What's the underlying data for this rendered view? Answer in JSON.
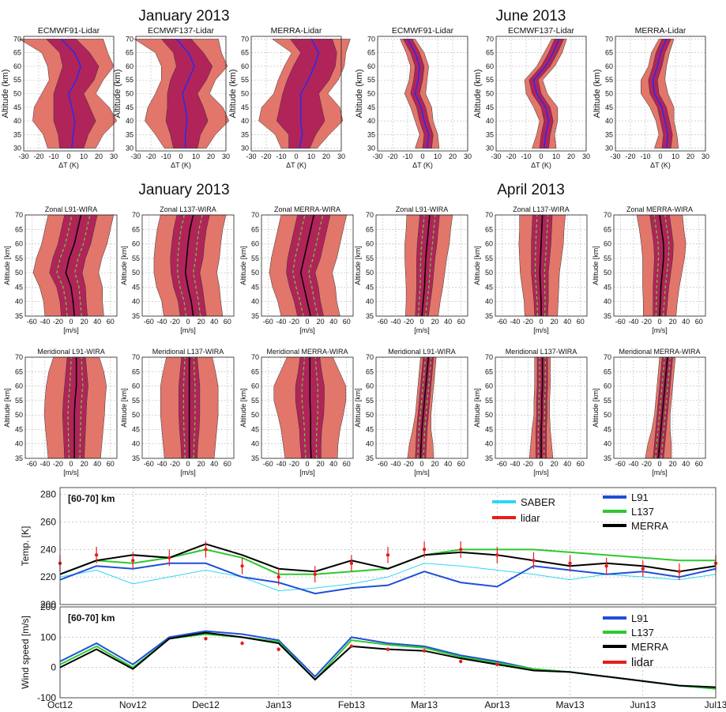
{
  "headings": {
    "jan_top": "January 2013",
    "jun": "June 2013",
    "jan_mid": "January 2013",
    "apr": "April 2013"
  },
  "colors": {
    "outer_band": "#e2766a",
    "inner_band": "#b0245a",
    "mean_line_temp": "#2a2af0",
    "mean_line_wind": "#000000",
    "sd_line_wind": "#66cc33",
    "saber": "#2fd6f0",
    "lidar": "#e81c1c",
    "l91": "#1f4fd8",
    "l137": "#2ec82e",
    "merra": "#000000"
  },
  "chart_data": [
    {
      "id": "temp_profiles",
      "type": "area",
      "ylabel": "Altitude (km)",
      "xlabel": "ΔT (K)",
      "xticks": [
        "-30",
        "-20",
        "-10",
        "0",
        "10",
        "20",
        "30"
      ],
      "yticks": [
        "30",
        "35",
        "40",
        "45",
        "50",
        "55",
        "60",
        "65",
        "70"
      ],
      "xlim": [
        -30,
        30
      ],
      "ylim": [
        29,
        71
      ],
      "altitudes": [
        30,
        35,
        40,
        45,
        50,
        55,
        60,
        65,
        70
      ],
      "panels": [
        {
          "title": "ECMWF91-Lidar",
          "mean": [
            2,
            3,
            4,
            2,
            0,
            5,
            8,
            4,
            -5
          ],
          "inner": [
            8,
            10,
            14,
            12,
            10,
            12,
            12,
            10,
            10
          ],
          "outer": [
            16,
            20,
            28,
            25,
            18,
            18,
            22,
            22,
            28
          ]
        },
        {
          "title": "ECMWF137-Lidar",
          "mean": [
            3,
            3,
            4,
            3,
            1,
            5,
            9,
            5,
            -3
          ],
          "inner": [
            8,
            10,
            14,
            12,
            10,
            12,
            12,
            10,
            10
          ],
          "outer": [
            14,
            20,
            28,
            25,
            18,
            18,
            22,
            22,
            28
          ]
        },
        {
          "title": "MERRA-Lidar",
          "mean": [
            2,
            4,
            3,
            3,
            3,
            8,
            12,
            15,
            10
          ],
          "inner": [
            7,
            9,
            16,
            14,
            12,
            14,
            14,
            12,
            14
          ],
          "outer": [
            12,
            18,
            28,
            26,
            18,
            20,
            20,
            18,
            26
          ]
        },
        {
          "title": "ECMWF91-Lidar",
          "mean": [
            3,
            4,
            1,
            -1,
            -5,
            -3,
            -2,
            -5,
            -10
          ],
          "inner": [
            3,
            3,
            3,
            3,
            3,
            3,
            3,
            3,
            3
          ],
          "outer": [
            8,
            6,
            6,
            7,
            7,
            6,
            6,
            6,
            5
          ]
        },
        {
          "title": "ECMWF137-Lidar",
          "mean": [
            2,
            3,
            5,
            3,
            -3,
            -5,
            3,
            8,
            12
          ],
          "inner": [
            3,
            3,
            3,
            3,
            3,
            3,
            3,
            3,
            3
          ],
          "outer": [
            8,
            6,
            6,
            8,
            7,
            6,
            6,
            6,
            5
          ]
        },
        {
          "title": "MERRA-Lidar",
          "mean": [
            4,
            5,
            3,
            1,
            -4,
            -5,
            -2,
            0,
            4
          ],
          "inner": [
            3,
            3,
            3,
            3,
            3,
            3,
            3,
            3,
            3
          ],
          "outer": [
            8,
            6,
            6,
            8,
            9,
            8,
            6,
            6,
            5
          ]
        }
      ]
    },
    {
      "id": "wind_profiles",
      "type": "area",
      "ylabel": "Altitude [km]",
      "xlabel": "[m/s]",
      "xticks": [
        "-60",
        "-40",
        "-20",
        "0",
        "20",
        "40",
        "60"
      ],
      "yticks": [
        "35",
        "40",
        "45",
        "50",
        "55",
        "60",
        "65",
        "70"
      ],
      "xlim": [
        -70,
        70
      ],
      "ylim": [
        35,
        70
      ],
      "altitudes": [
        35,
        40,
        45,
        50,
        55,
        60,
        65,
        70
      ],
      "panels": [
        {
          "title": "Zonal L91-WIRA",
          "mean": [
            5,
            3,
            0,
            -8,
            -3,
            5,
            10,
            15
          ],
          "inner": [
            20,
            20,
            22,
            25,
            25,
            25,
            25,
            25
          ],
          "outer": [
            45,
            45,
            48,
            50,
            50,
            50,
            50,
            50
          ]
        },
        {
          "title": "Zonal L137-WIRA",
          "mean": [
            8,
            5,
            0,
            -4,
            -2,
            0,
            3,
            8
          ],
          "inner": [
            20,
            20,
            22,
            22,
            25,
            25,
            25,
            25
          ],
          "outer": [
            45,
            45,
            48,
            48,
            50,
            50,
            50,
            50
          ]
        },
        {
          "title": "Zonal MERRA-WIRA",
          "mean": [
            5,
            0,
            -5,
            -10,
            -5,
            0,
            5,
            10
          ],
          "inner": [
            20,
            20,
            22,
            22,
            25,
            25,
            25,
            25
          ],
          "outer": [
            45,
            45,
            48,
            48,
            50,
            50,
            50,
            50
          ]
        },
        {
          "title": "Zonal L91-WIRA",
          "mean": [
            0,
            2,
            4,
            5,
            6,
            8,
            10,
            12
          ],
          "inner": [
            10,
            11,
            12,
            13,
            14,
            15,
            15,
            15
          ],
          "outer": [
            25,
            26,
            28,
            30,
            32,
            34,
            34,
            35
          ]
        },
        {
          "title": "Zonal L137-WIRA",
          "mean": [
            0,
            0,
            -1,
            -2,
            -1,
            0,
            1,
            2
          ],
          "inner": [
            10,
            11,
            12,
            13,
            14,
            15,
            15,
            15
          ],
          "outer": [
            25,
            26,
            28,
            30,
            32,
            34,
            34,
            35
          ]
        },
        {
          "title": "Zonal MERRA-WIRA",
          "mean": [
            0,
            1,
            2,
            4,
            6,
            6,
            3,
            0
          ],
          "inner": [
            10,
            11,
            12,
            13,
            14,
            15,
            15,
            15
          ],
          "outer": [
            25,
            26,
            28,
            30,
            32,
            34,
            34,
            35
          ]
        },
        {
          "title": "Meridional L91-WIRA",
          "mean": [
            5,
            5,
            5,
            5,
            6,
            8,
            8,
            8
          ],
          "inner": [
            15,
            16,
            17,
            18,
            18,
            18,
            16,
            14
          ],
          "outer": [
            40,
            42,
            44,
            46,
            46,
            46,
            42,
            35
          ]
        },
        {
          "title": "Meridional L137-WIRA",
          "mean": [
            2,
            2,
            2,
            2,
            2,
            2,
            2,
            2
          ],
          "inner": [
            12,
            13,
            15,
            16,
            16,
            16,
            14,
            12
          ],
          "outer": [
            38,
            40,
            42,
            44,
            44,
            44,
            40,
            35
          ]
        },
        {
          "title": "Meridional MERRA-WIRA",
          "mean": [
            6,
            5,
            5,
            5,
            4,
            4,
            4,
            4
          ],
          "inner": [
            15,
            16,
            17,
            20,
            22,
            22,
            18,
            15
          ],
          "outer": [
            40,
            42,
            45,
            50,
            55,
            55,
            45,
            35
          ]
        },
        {
          "title": "Meridional L91-WIRA",
          "mean": [
            -2,
            -1,
            0,
            2,
            4,
            6,
            8,
            10
          ],
          "inner": [
            8,
            8,
            8,
            8,
            8,
            8,
            8,
            8
          ],
          "outer": [
            20,
            18,
            14,
            12,
            12,
            12,
            12,
            12
          ]
        },
        {
          "title": "Meridional L137-WIRA",
          "mean": [
            0,
            0,
            0,
            1,
            1,
            2,
            2,
            2
          ],
          "inner": [
            8,
            8,
            8,
            8,
            8,
            8,
            8,
            8
          ],
          "outer": [
            18,
            16,
            14,
            12,
            12,
            12,
            12,
            12
          ]
        },
        {
          "title": "Meridional MERRA-WIRA",
          "mean": [
            -2,
            0,
            2,
            4,
            6,
            8,
            10,
            12
          ],
          "inner": [
            8,
            8,
            8,
            8,
            8,
            8,
            8,
            8
          ],
          "outer": [
            20,
            18,
            14,
            12,
            12,
            12,
            12,
            12
          ]
        }
      ]
    },
    {
      "id": "temp_timeseries",
      "type": "line",
      "label": "[60-70] km",
      "ylabel": "Temp. [K]",
      "ylim": [
        200,
        285
      ],
      "yticks": [
        200,
        220,
        240,
        260,
        280
      ],
      "ytick_labels": [
        "200",
        "220",
        "240",
        "260",
        "280"
      ],
      "xlim": [
        0,
        9
      ],
      "legend_left": [
        "SABER",
        "lidar"
      ],
      "legend_right": [
        "L91",
        "L137",
        "MERRA"
      ],
      "x": [
        0,
        0.5,
        1,
        1.5,
        2,
        2.5,
        3,
        3.5,
        4,
        4.5,
        5,
        5.5,
        6,
        6.5,
        7,
        7.5,
        8,
        8.5,
        9
      ],
      "series": [
        {
          "name": "L91",
          "values": [
            218,
            228,
            226,
            230,
            230,
            220,
            216,
            208,
            212,
            214,
            224,
            216,
            213,
            228,
            225,
            222,
            224,
            220,
            226
          ]
        },
        {
          "name": "L137",
          "values": [
            222,
            232,
            230,
            234,
            240,
            234,
            222,
            222,
            224,
            226,
            236,
            240,
            240,
            240,
            238,
            236,
            234,
            232,
            232
          ]
        },
        {
          "name": "MERRA",
          "values": [
            222,
            232,
            236,
            234,
            244,
            236,
            226,
            224,
            232,
            226,
            236,
            238,
            236,
            232,
            228,
            230,
            228,
            224,
            228
          ]
        },
        {
          "name": "SABER",
          "values": [
            220,
            225,
            215,
            220,
            225,
            220,
            210,
            212,
            215,
            220,
            230,
            228,
            225,
            222,
            218,
            222,
            220,
            218,
            222
          ]
        },
        {
          "name": "lidar",
          "values": [
            230,
            236,
            232,
            234,
            240,
            228,
            220,
            222,
            230,
            236,
            240,
            240,
            236,
            232,
            230,
            228,
            226,
            224,
            230
          ]
        }
      ]
    },
    {
      "id": "wind_timeseries",
      "type": "line",
      "label": "[60-70] km",
      "ylabel": "Wind speed [m/s]",
      "ylim": [
        -100,
        200
      ],
      "yticks": [
        -100,
        0,
        100,
        200
      ],
      "ytick_labels": [
        "-100",
        "0",
        "100",
        "200"
      ],
      "xlim": [
        0,
        9
      ],
      "categories": [
        "Oct12",
        "Nov12",
        "Dec12",
        "Jan13",
        "Feb13",
        "Mar13",
        "Apr13",
        "May13",
        "Jun13",
        "Jul13"
      ],
      "legend": [
        "L91",
        "L137",
        "MERRA",
        "lidar"
      ],
      "x": [
        0,
        0.5,
        1,
        1.5,
        2,
        2.5,
        3,
        3.5,
        4,
        4.5,
        5,
        5.5,
        6,
        6.5,
        7,
        7.5,
        8,
        8.5,
        9
      ],
      "series": [
        {
          "name": "L91",
          "values": [
            20,
            80,
            10,
            100,
            120,
            110,
            90,
            -30,
            100,
            80,
            70,
            40,
            20,
            -5,
            -15,
            -30,
            -45,
            -60,
            -70
          ]
        },
        {
          "name": "L137",
          "values": [
            10,
            70,
            0,
            95,
            110,
            100,
            85,
            -40,
            90,
            75,
            65,
            35,
            15,
            -5,
            -15,
            -30,
            -45,
            -60,
            -70
          ]
        },
        {
          "name": "MERRA",
          "values": [
            0,
            60,
            -5,
            95,
            115,
            100,
            80,
            -40,
            70,
            60,
            55,
            30,
            10,
            -10,
            -15,
            -30,
            -45,
            -60,
            -65
          ]
        },
        {
          "name": "lidar",
          "values": [
            null,
            null,
            null,
            null,
            95,
            80,
            60,
            null,
            70,
            60,
            55,
            20,
            10,
            null,
            null,
            null,
            null,
            null,
            null
          ]
        }
      ]
    }
  ]
}
